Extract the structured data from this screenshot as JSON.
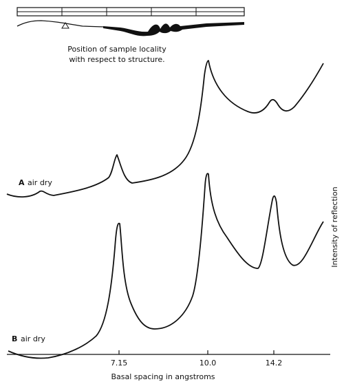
{
  "structure_sketch": {
    "caption": [
      "Position of sample locality",
      "with respect to structure."
    ]
  },
  "traces": [
    {
      "label": "A",
      "condition": "air dry"
    },
    {
      "label": "B",
      "condition": "air dry"
    }
  ],
  "axis": {
    "ticks": [
      "7.15",
      "10.0",
      "14.2"
    ],
    "xlabel": "Basal spacing in angstroms",
    "ylabel": "Intensity of reflection"
  }
}
